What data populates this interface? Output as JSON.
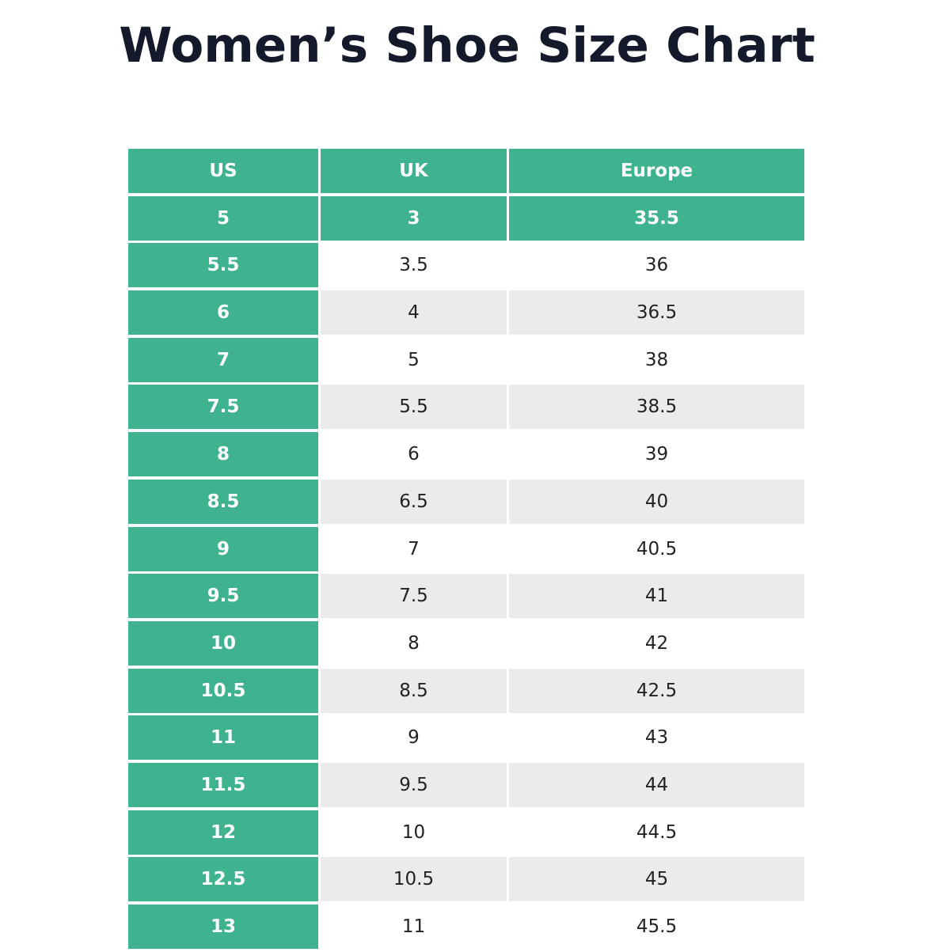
{
  "chart_data": {
    "type": "table",
    "title": "Women’s Shoe Size Chart",
    "columns": [
      "US",
      "UK",
      "Europe"
    ],
    "rows": [
      [
        "5",
        "3",
        "35.5"
      ],
      [
        "5.5",
        "3.5",
        "36"
      ],
      [
        "6",
        "4",
        "36.5"
      ],
      [
        "7",
        "5",
        "38"
      ],
      [
        "7.5",
        "5.5",
        "38.5"
      ],
      [
        "8",
        "6",
        "39"
      ],
      [
        "8.5",
        "6.5",
        "40"
      ],
      [
        "9",
        "7",
        "40.5"
      ],
      [
        "9.5",
        "7.5",
        "41"
      ],
      [
        "10",
        "8",
        "42"
      ],
      [
        "10.5",
        "8.5",
        "42.5"
      ],
      [
        "11",
        "9",
        "43"
      ],
      [
        "11.5",
        "9.5",
        "44"
      ],
      [
        "12",
        "10",
        "44.5"
      ],
      [
        "12.5",
        "10.5",
        "45"
      ],
      [
        "13",
        "11",
        "45.5"
      ]
    ],
    "colors": {
      "header_green": "#3fb28f",
      "stripe_grey": "#ebebeb",
      "title_text": "#141a2b"
    }
  }
}
